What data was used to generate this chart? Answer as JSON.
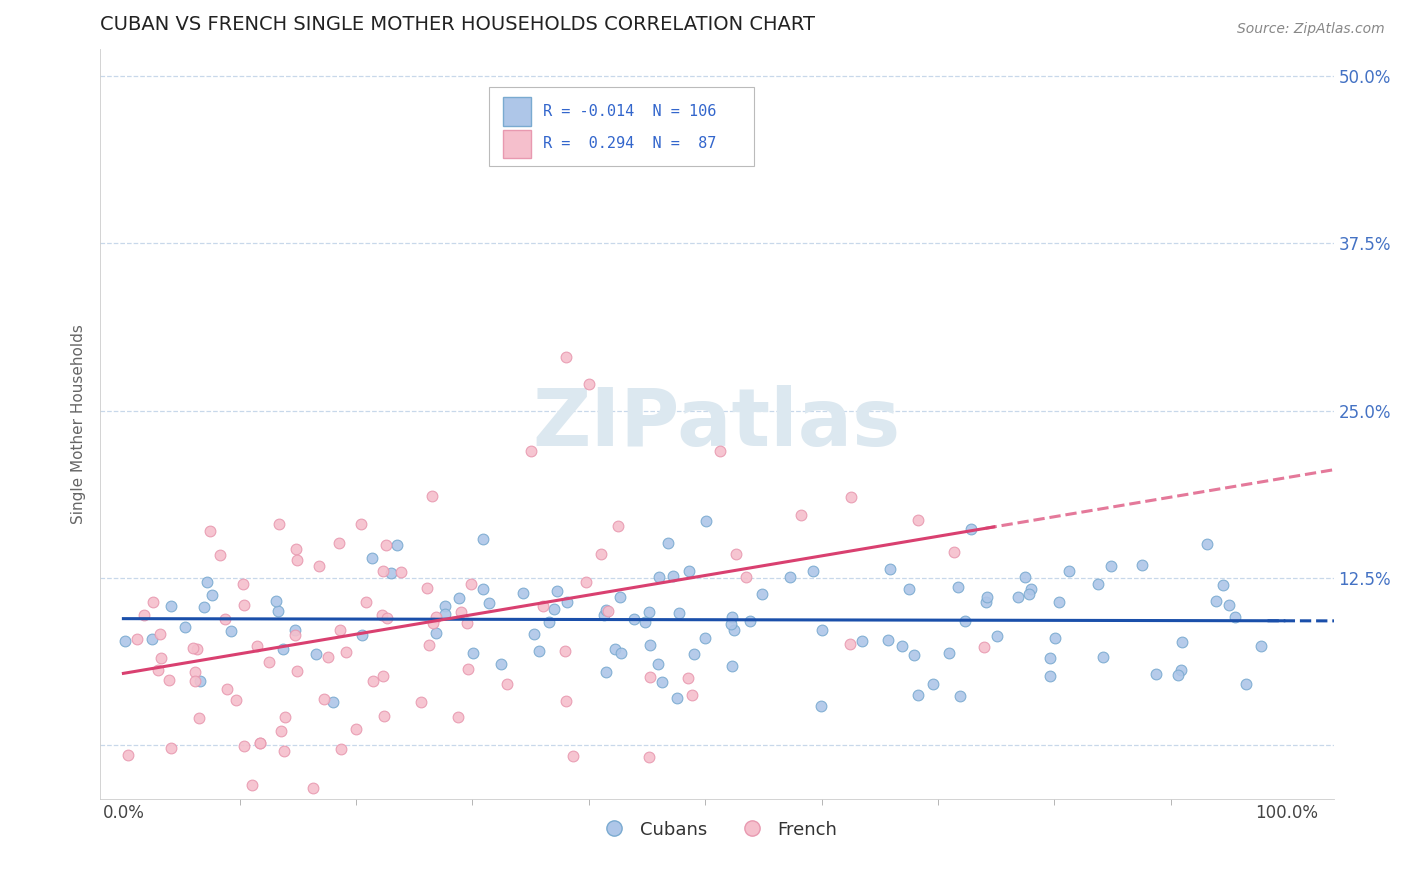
{
  "title": "CUBAN VS FRENCH SINGLE MOTHER HOUSEHOLDS CORRELATION CHART",
  "source_text": "Source: ZipAtlas.com",
  "ylabel": "Single Mother Households",
  "xmin": 0.0,
  "xmax": 1.0,
  "ymin": -0.04,
  "ymax": 0.52,
  "yticks": [
    0.0,
    0.125,
    0.25,
    0.375,
    0.5
  ],
  "ytick_labels": [
    "",
    "12.5%",
    "25.0%",
    "37.5%",
    "50.0%"
  ],
  "xticks": [
    0.0,
    1.0
  ],
  "xtick_labels": [
    "0.0%",
    "100.0%"
  ],
  "blue_R": -0.014,
  "blue_N": 106,
  "pink_R": 0.294,
  "pink_N": 87,
  "blue_dot_face": "#aec6e8",
  "blue_dot_edge": "#7aaad0",
  "pink_dot_face": "#f5bfcc",
  "pink_dot_edge": "#e899b0",
  "trend_blue_color": "#1a4faa",
  "trend_pink_color": "#d94070",
  "background_color": "#ffffff",
  "grid_color": "#c8d8ea",
  "legend_label_cubans": "Cubans",
  "legend_label_french": "French",
  "title_fontsize": 14,
  "axis_label_fontsize": 11,
  "tick_fontsize": 12,
  "source_fontsize": 10,
  "watermark_color": "#dce8f0",
  "seed": 7
}
